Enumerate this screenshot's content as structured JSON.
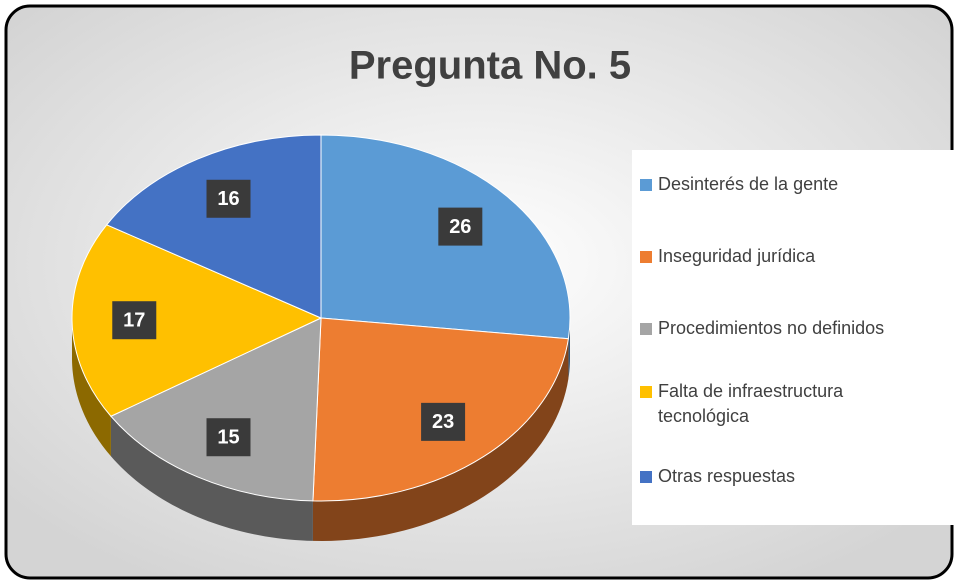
{
  "chart_data": {
    "type": "pie",
    "title": "Pregunta No. 5",
    "categories": [
      "Desinterés de la gente",
      "Inseguridad jurídica",
      "Procedimientos no definidos",
      "Falta de infraestructura tecnológica",
      "Otras respuestas"
    ],
    "values": [
      26,
      23,
      15,
      17,
      16
    ],
    "colors": [
      "#5b9bd5",
      "#ed7d31",
      "#a5a5a5",
      "#ffc000",
      "#4472c4"
    ],
    "legend": "right"
  }
}
